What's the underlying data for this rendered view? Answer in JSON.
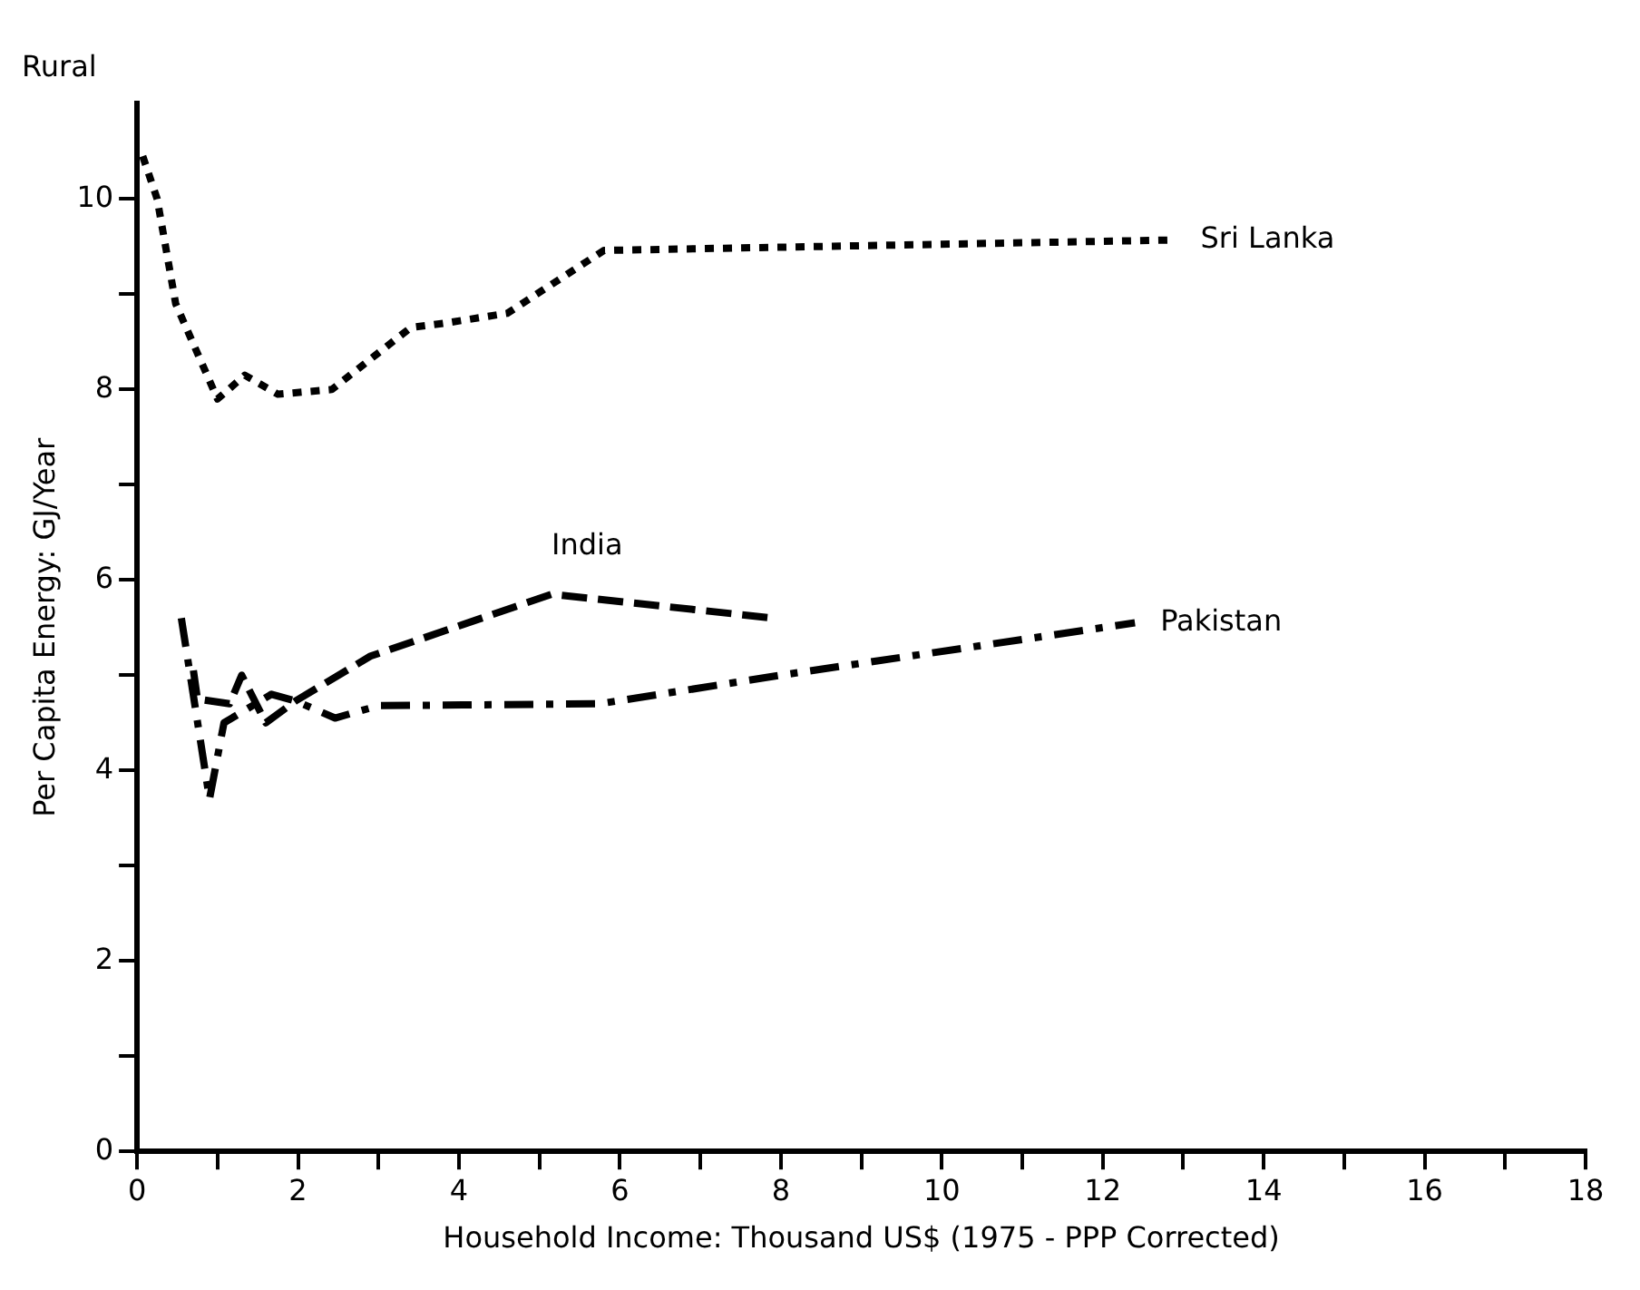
{
  "chart_data": {
    "type": "line",
    "title": "Rural",
    "xlabel": "Household Income: Thousand US$ (1975 - PPP Corrected)",
    "ylabel": "Per Capita Energy: GJ/Year",
    "xlim": [
      0,
      18
    ],
    "xticks": [
      0,
      {
        "value": 1,
        "label": null
      },
      2,
      {
        "value": 3,
        "label": null
      },
      4,
      {
        "value": 5,
        "label": null
      },
      6,
      {
        "value": 7,
        "label": null
      },
      8,
      {
        "value": 9,
        "label": null
      },
      10,
      {
        "value": 11,
        "label": null
      },
      12,
      {
        "value": 13,
        "label": null
      },
      14,
      {
        "value": 15,
        "label": null
      },
      16,
      {
        "value": 17,
        "label": null
      },
      18
    ],
    "ylim": [
      0,
      11
    ],
    "yticks": [
      0,
      {
        "value": 1,
        "label": null
      },
      2,
      {
        "value": 3,
        "label": null
      },
      4,
      {
        "value": 5,
        "label": null
      },
      6,
      {
        "value": 7,
        "label": null
      },
      8,
      {
        "value": 9,
        "label": null
      },
      10
    ],
    "grid": false,
    "legend": false,
    "marker": "none",
    "series": [
      {
        "name": "Sri Lanka",
        "color": "#000000",
        "line_style": "dotted",
        "x": [
          0.07,
          0.25,
          0.48,
          1.0,
          1.34,
          1.75,
          2.42,
          3.4,
          3.85,
          4.6,
          5.8,
          12.9
        ],
        "values": [
          10.45,
          10.0,
          8.9,
          7.9,
          8.15,
          7.95,
          8.0,
          8.65,
          8.7,
          8.8,
          9.46,
          9.57
        ]
      },
      {
        "name": "India",
        "color": "#000000",
        "line_style": "dashed",
        "x": [
          0.7,
          0.75,
          1.15,
          1.3,
          1.6,
          1.97,
          2.9,
          5.15,
          7.9
        ],
        "values": [
          5.05,
          4.75,
          4.7,
          5.0,
          4.5,
          4.73,
          5.2,
          5.85,
          5.6
        ]
      },
      {
        "name": "Pakistan",
        "color": "#000000",
        "line_style": "dashdot",
        "x": [
          0.55,
          0.9,
          1.08,
          1.67,
          1.97,
          2.46,
          3.0,
          5.75,
          8.0,
          12.4
        ],
        "values": [
          5.6,
          3.7,
          4.5,
          4.8,
          4.73,
          4.55,
          4.68,
          4.7,
          5.0,
          5.55
        ]
      }
    ]
  }
}
